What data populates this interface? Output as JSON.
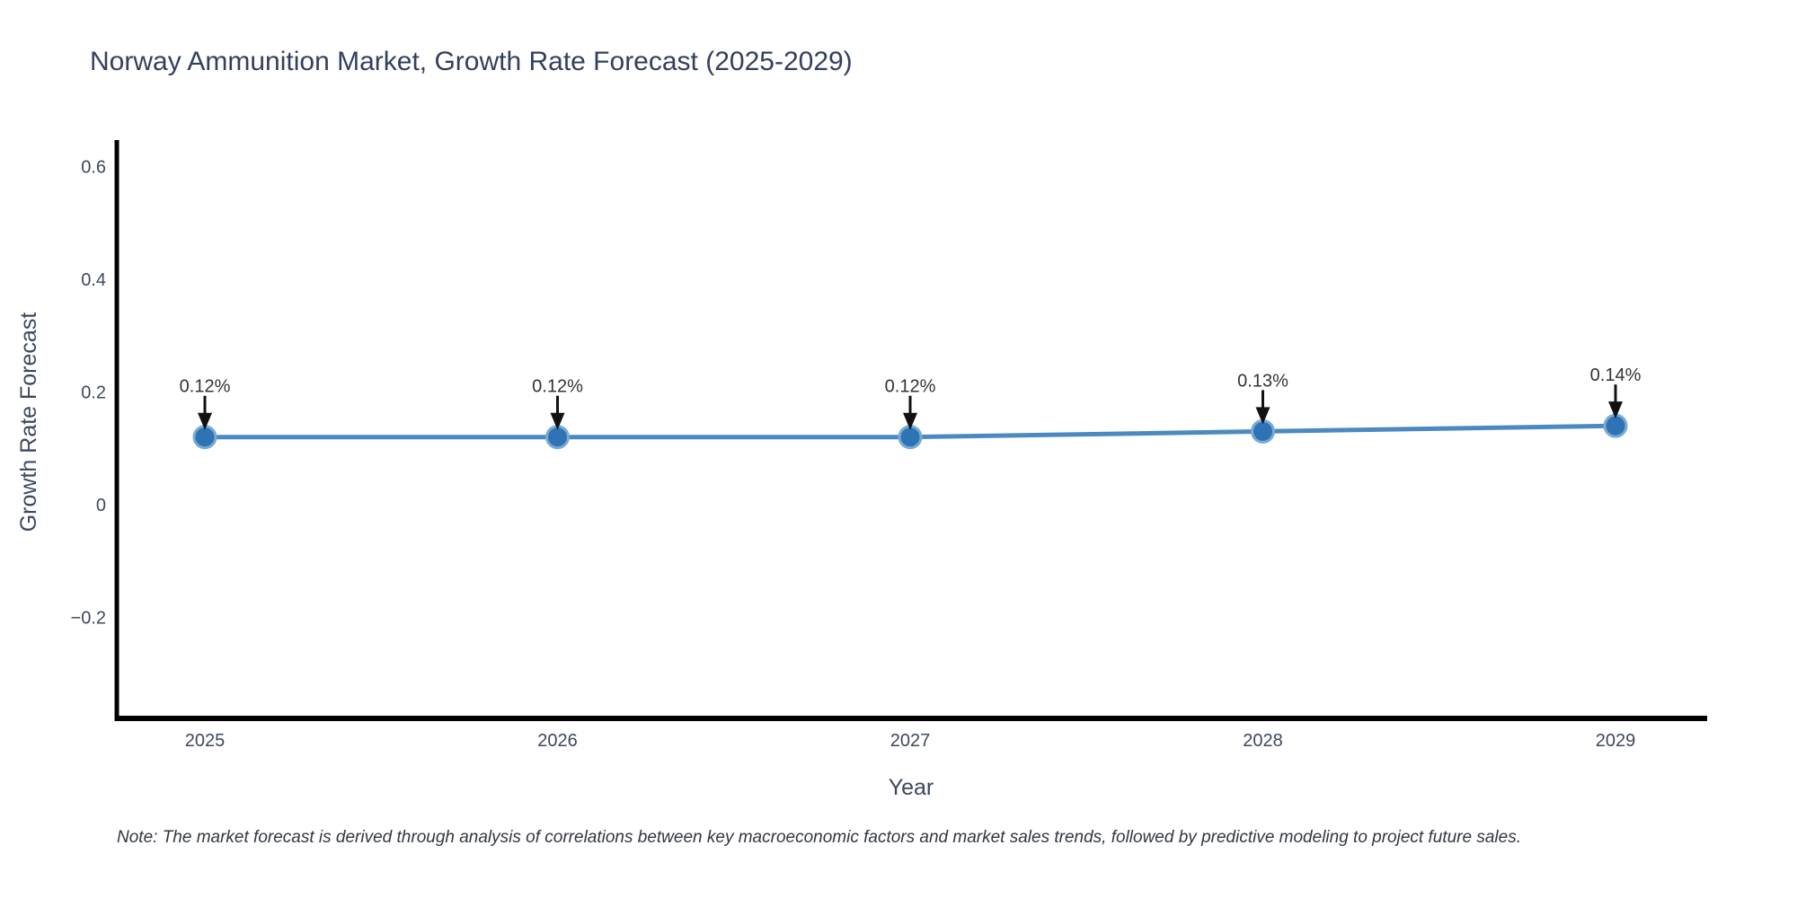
{
  "title": "Norway Ammunition Market, Growth Rate Forecast (2025-2029)",
  "note": "Note: The market forecast is derived through analysis of correlations between key macroeconomic factors and market sales trends, followed by predictive modeling to project future sales.",
  "chart_data": {
    "type": "line",
    "title": "Norway Ammunition Market, Growth Rate Forecast (2025-2029)",
    "xlabel": "Year",
    "ylabel": "Growth Rate Forecast",
    "categories": [
      "2025",
      "2026",
      "2027",
      "2028",
      "2029"
    ],
    "series": [
      {
        "name": "Growth Rate Forecast",
        "values": [
          0.12,
          0.12,
          0.12,
          0.13,
          0.14
        ],
        "point_labels": [
          "0.12%",
          "0.12%",
          "0.12%",
          "0.13%",
          "0.14%"
        ]
      }
    ],
    "y_ticks": [
      {
        "value": 0.6,
        "label": "0.6"
      },
      {
        "value": 0.4,
        "label": "0.4"
      },
      {
        "value": 0.2,
        "label": "0.2"
      },
      {
        "value": 0,
        "label": "0"
      },
      {
        "value": -0.2,
        "label": "−0.2"
      }
    ],
    "ylim": [
      -0.38,
      0.64
    ],
    "grid": false,
    "legend_position": "none",
    "background": "#ffffff",
    "colors": {
      "line": "#4b8ac1",
      "marker_fill": "#2e74b5",
      "marker_ring": "#7aaad5",
      "axis_line": "#000000",
      "axis_text": "#3c485c",
      "annotation_text": "#333333",
      "arrow": "#111111"
    }
  }
}
